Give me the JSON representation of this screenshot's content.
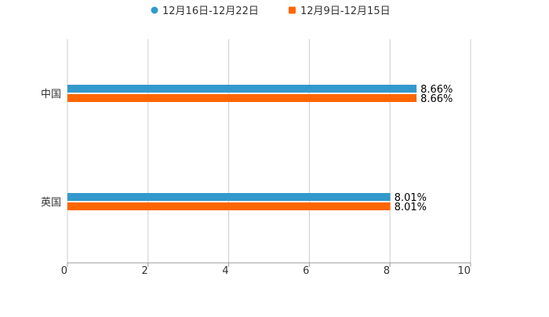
{
  "chart_data": {
    "type": "bar",
    "orientation": "horizontal",
    "title": "",
    "xlabel": "",
    "ylabel": "",
    "categories": [
      "中国",
      "英国"
    ],
    "series": [
      {
        "name": "12月16日-12月22日",
        "color": "#3399cc",
        "values": [
          8.66,
          8.01
        ],
        "labels": [
          "8.66%",
          "8.01%"
        ]
      },
      {
        "name": "12月9日-12月15日",
        "color": "#ff6600",
        "values": [
          8.66,
          8.01
        ],
        "labels": [
          "8.66%",
          "8.01%"
        ]
      }
    ],
    "xlim": [
      0,
      10
    ],
    "xticks": [
      "0",
      "2",
      "4",
      "6",
      "8",
      "10"
    ],
    "grid": true,
    "legend_position": "top-center"
  }
}
